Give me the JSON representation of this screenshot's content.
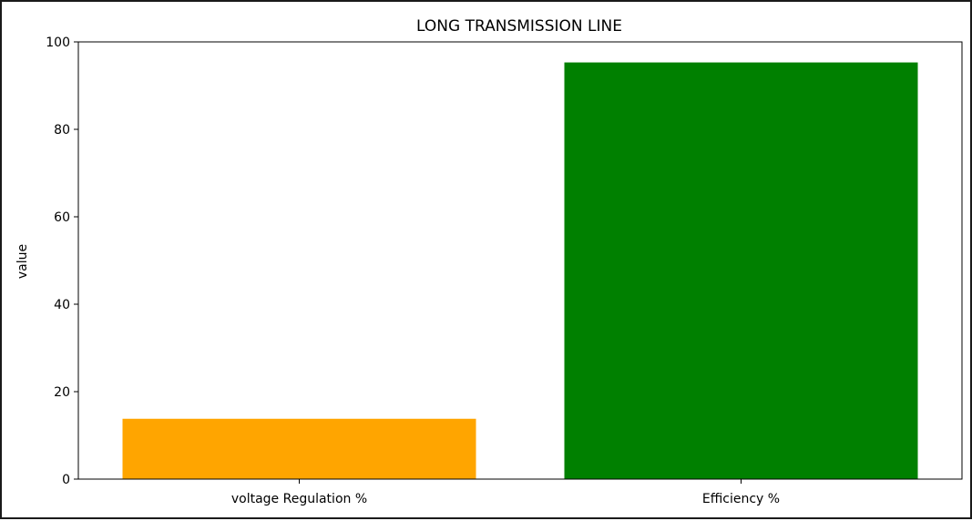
{
  "chart_data": {
    "type": "bar",
    "title": "LONG TRANSMISSION LINE",
    "xlabel": "",
    "ylabel": "value",
    "categories": [
      "voltage Regulation %",
      "Efficiency %"
    ],
    "values": [
      13.8,
      95.3
    ],
    "colors": [
      "#ffa500",
      "#008000"
    ],
    "ylim": [
      0,
      100
    ],
    "yticks": [
      "0",
      "20",
      "40",
      "60",
      "80",
      "100"
    ],
    "grid": false,
    "legend": "none"
  }
}
